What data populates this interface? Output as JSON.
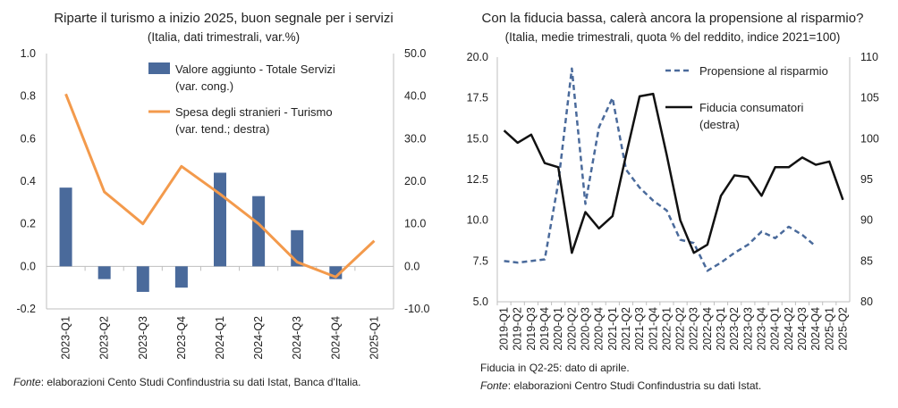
{
  "chart_data": [
    {
      "type": "bar",
      "title": "Riparte il turismo a inizio 2025, buon segnale per i servizi",
      "subtitle": "(Italia, dati trimestrali, var.%)",
      "categories": [
        "2023-Q1",
        "2023-Q2",
        "2023-Q3",
        "2023-Q4",
        "2024-Q1",
        "2024-Q2",
        "2024-Q3",
        "2024-Q4",
        "2025-Q1"
      ],
      "y_ticks": [
        "-0.2",
        "0.0",
        "0.2",
        "0.4",
        "0.6",
        "0.8",
        "1.0"
      ],
      "y2_ticks": [
        "-10.0",
        "0.0",
        "10.0",
        "20.0",
        "30.0",
        "40.0",
        "50.0"
      ],
      "ylim": [
        -0.2,
        1.0
      ],
      "y2lim": [
        -10,
        50
      ],
      "grid": false,
      "legend_position": "top-right",
      "series": [
        {
          "name": "Valore aggiunto - Totale Servizi",
          "name_line2": "(var. cong.)",
          "kind": "bar",
          "axis": "left",
          "color": "#4a6a9b",
          "values": [
            0.37,
            -0.06,
            -0.12,
            -0.1,
            0.44,
            0.33,
            0.17,
            -0.06,
            null
          ]
        },
        {
          "name": "Spesa degli stranieri - Turismo",
          "name_line2": "(var. tend.; destra)",
          "kind": "line",
          "axis": "right",
          "color": "#f39a4c",
          "values": [
            40.5,
            17.5,
            10.0,
            23.5,
            17.0,
            10.0,
            1.0,
            -2.5,
            6.0
          ]
        }
      ],
      "source_label": "Fonte",
      "source_text": ": elaborazioni Cento Studi Confindustria su dati Istat, Banca d'Italia."
    },
    {
      "type": "line",
      "title": "Con la fiducia bassa, calerà ancora la propensione al risparmio?",
      "subtitle": "(Italia, medie trimestrali, quota % del reddito, indice 2021=100)",
      "categories": [
        "2019-Q1",
        "2019-Q2",
        "2019-Q3",
        "2019-Q4",
        "2020-Q1",
        "2020-Q2",
        "2020-Q3",
        "2020-Q4",
        "2021-Q1",
        "2021-Q2",
        "2021-Q3",
        "2021-Q4",
        "2022-Q1",
        "2022-Q2",
        "2022-Q3",
        "2022-Q4",
        "2023-Q1",
        "2023-Q2",
        "2023-Q3",
        "2023-Q4",
        "2024-Q1",
        "2024-Q2",
        "2024-Q3",
        "2024-Q4",
        "2025-Q1",
        "2025-Q2"
      ],
      "y_ticks": [
        "5.0",
        "7.5",
        "10.0",
        "12.5",
        "15.0",
        "17.5",
        "20.0"
      ],
      "y2_ticks": [
        "80",
        "85",
        "90",
        "95",
        "100",
        "105",
        "110"
      ],
      "ylim": [
        5,
        20
      ],
      "y2lim": [
        80,
        110
      ],
      "grid": false,
      "legend_position": "top-right",
      "series": [
        {
          "name": "Propensione al risparmio",
          "kind": "dashed",
          "axis": "left",
          "color": "#4a6a9b",
          "values": [
            7.5,
            7.4,
            7.5,
            7.6,
            12.3,
            19.3,
            11.0,
            15.7,
            17.5,
            13.1,
            12.0,
            11.2,
            10.6,
            8.8,
            8.6,
            6.9,
            7.4,
            8.0,
            8.5,
            9.3,
            8.9,
            9.6,
            9.1,
            8.4,
            null,
            null
          ]
        },
        {
          "name": "Fiducia consumatori",
          "name_line2": "(destra)",
          "kind": "solid",
          "axis": "right",
          "color": "#111111",
          "values": [
            101.0,
            99.5,
            100.5,
            97.0,
            96.5,
            86.0,
            91.0,
            89.0,
            90.5,
            98.0,
            105.2,
            105.5,
            98.0,
            90.0,
            86.0,
            87.0,
            93.0,
            95.5,
            95.3,
            93.0,
            96.5,
            96.5,
            97.7,
            96.8,
            97.2,
            92.5
          ]
        }
      ],
      "note": "Fiducia in Q2-25: dato di aprile.",
      "source_label": "Fonte",
      "source_text": ": elaborazioni Centro Studi Confindustria su dati Istat."
    }
  ]
}
